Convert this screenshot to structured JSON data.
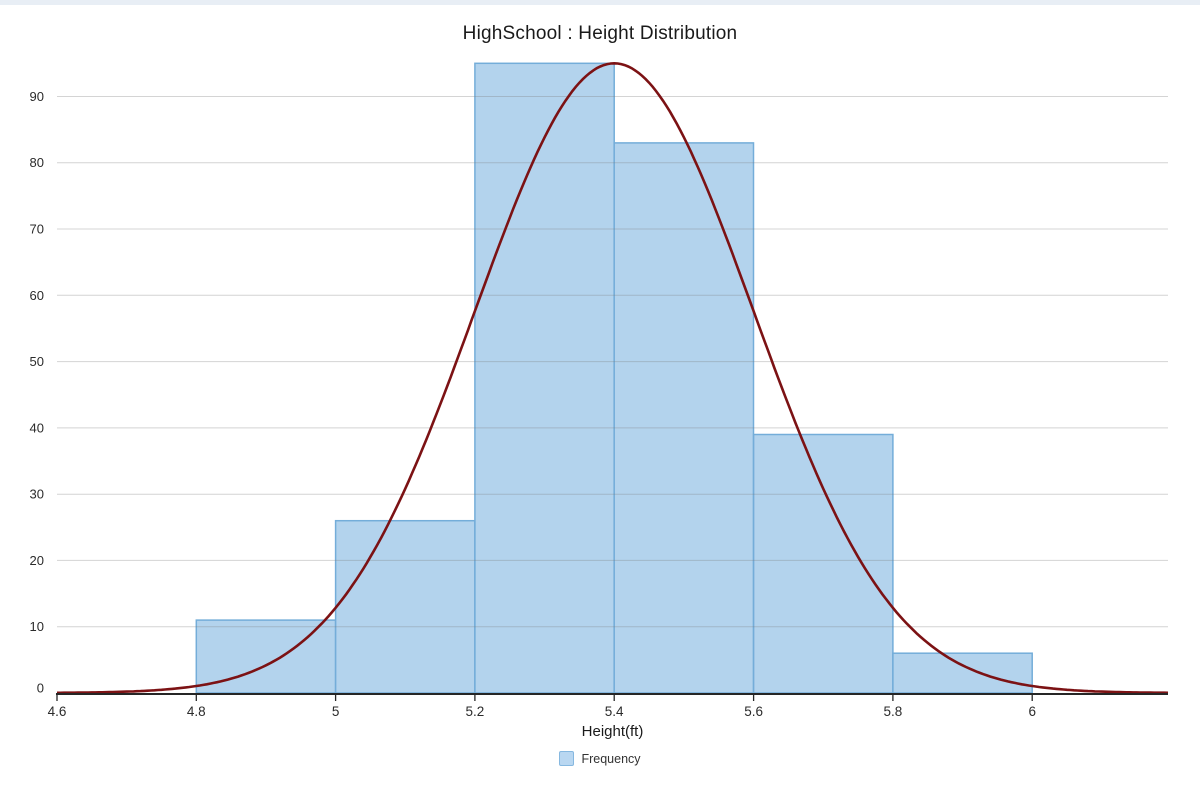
{
  "window": {
    "top_strip_color": "#e8eef5"
  },
  "chart_data": {
    "type": "bar",
    "subtype": "histogram-with-normal-curve",
    "title": "HighSchool : Height Distribution",
    "xlabel": "Height(ft)",
    "ylabel": "",
    "bin_edges": [
      4.8,
      5.0,
      5.2,
      5.4,
      5.6,
      5.8,
      6.0
    ],
    "frequencies": [
      11,
      26,
      95,
      83,
      39,
      6
    ],
    "overlay_curve": {
      "shape": "normal",
      "mean": 5.4,
      "sigma": 0.2,
      "peak": 95,
      "color": "#7c1214"
    },
    "x_tick_values": [
      4.6,
      4.8,
      5.0,
      5.2,
      5.4,
      5.6,
      5.8,
      6.0
    ],
    "x_tick_labels": [
      "4.6",
      "4.8",
      "5",
      "5.2",
      "5.4",
      "5.6",
      "5.8",
      "6"
    ],
    "y_ticks": [
      0,
      10,
      20,
      30,
      40,
      50,
      60,
      70,
      80,
      90
    ],
    "xlim": [
      4.6,
      6.195
    ],
    "ylim": [
      0,
      95.5
    ],
    "grid": "horizontal-only",
    "legend": {
      "position": "bottom-center",
      "items": [
        {
          "label": "Frequency",
          "swatch_fill": "#b9d7f1",
          "swatch_border": "#86b8e0"
        }
      ]
    },
    "colors": {
      "bar_fill": "#a9cdeb",
      "bar_border": "#74add9",
      "curve": "#7c1214",
      "gridline": "rgba(125,125,125,0.33)",
      "axis_line": "#262626",
      "tick_label": "#2b2b2b",
      "title": "#1a1a1a"
    }
  }
}
